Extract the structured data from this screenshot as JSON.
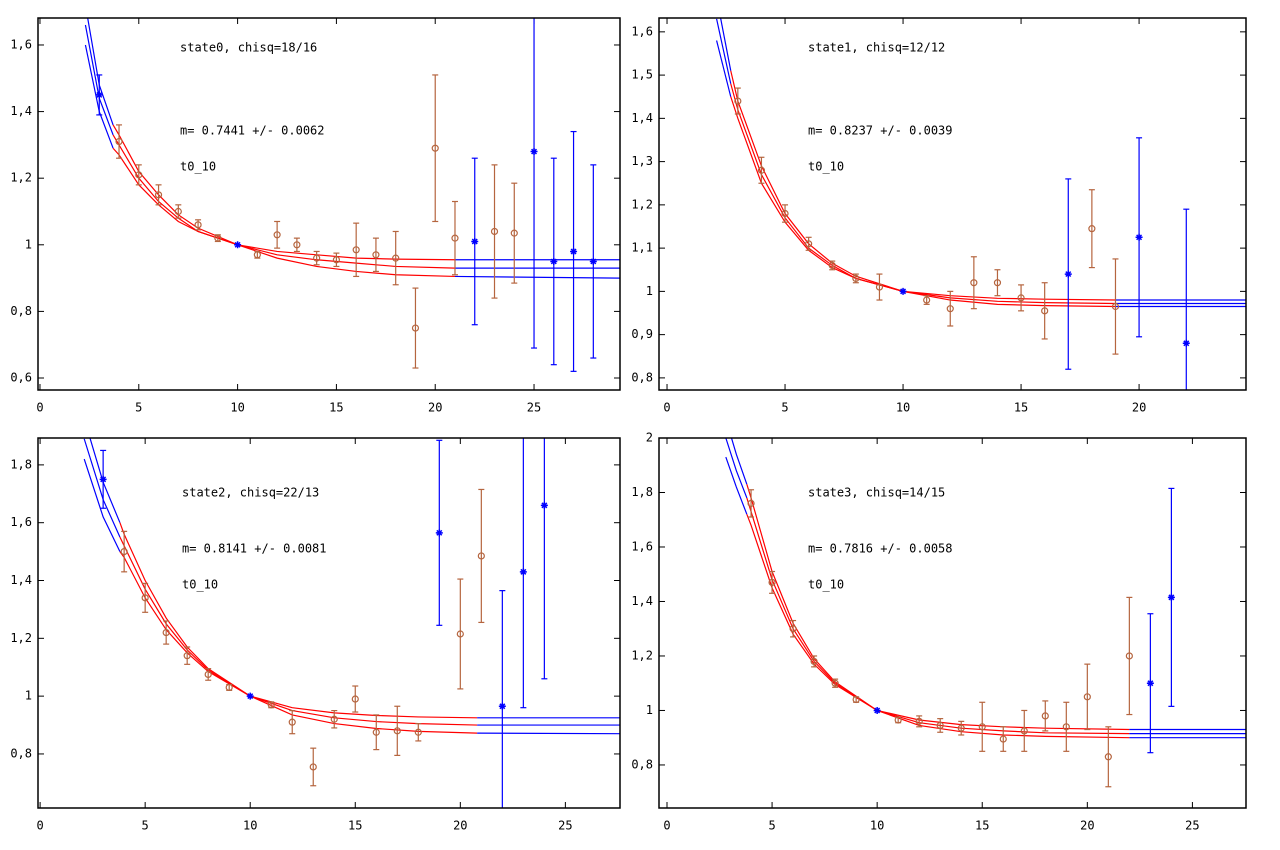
{
  "chart_data": [
    {
      "type": "scatter",
      "annotations": [
        "state0, chisq=18/16",
        "m= 0.7441 +/- 0.0062",
        "t0_10"
      ],
      "xlim": [
        -0.1,
        29.35
      ],
      "ylim": [
        0.564,
        1.681
      ],
      "xticks": [
        0,
        5,
        10,
        15,
        20,
        25
      ],
      "yticks": [
        {
          "value": 0.6,
          "label": "0,6"
        },
        {
          "value": 0.8,
          "label": "0,8"
        },
        1,
        {
          "value": 1.2,
          "label": "1,2"
        },
        {
          "value": 1.4,
          "label": "1,4"
        },
        {
          "value": 1.6,
          "label": "1,6"
        }
      ],
      "series": [
        {
          "color": "#b5653f",
          "marker": "circle",
          "x": [
            4,
            5,
            6,
            7,
            8,
            9,
            11,
            12,
            13,
            14,
            15,
            16,
            17,
            18,
            19,
            20,
            21,
            23,
            24
          ],
          "values": [
            1.31,
            1.21,
            1.15,
            1.1,
            1.06,
            1.02,
            0.97,
            1.03,
            1.0,
            0.96,
            0.955,
            0.985,
            0.97,
            0.96,
            0.75,
            1.29,
            1.02,
            1.04,
            1.035
          ],
          "errors": [
            0.05,
            0.03,
            0.03,
            0.02,
            0.015,
            0.01,
            0.01,
            0.04,
            0.02,
            0.02,
            0.02,
            0.08,
            0.05,
            0.08,
            0.12,
            0.22,
            0.11,
            0.2,
            0.15
          ]
        },
        {
          "color": "#0000ff",
          "marker": "star",
          "x": [
            3,
            10,
            22,
            25,
            26,
            27,
            28
          ],
          "values": [
            1.45,
            1.0,
            1.01,
            1.28,
            0.95,
            0.98,
            0.95
          ],
          "errors": [
            0.06,
            0,
            0.25,
            0.59,
            0.31,
            0.36,
            0.29
          ]
        }
      ],
      "fit": [
        {
          "color": "#0000ff",
          "x": [
            2.3,
            3,
            3.7
          ],
          "curves": [
            [
              1.66,
              1.44,
              1.33
            ],
            [
              1.6,
              1.4,
              1.29
            ],
            [
              1.72,
              1.48,
              1.36
            ]
          ]
        },
        {
          "color": "#ff0000",
          "x": [
            3.7,
            4,
            5,
            6,
            7,
            8,
            10,
            12,
            14,
            16,
            18,
            21
          ],
          "curves": [
            [
              1.33,
              1.3,
              1.2,
              1.13,
              1.08,
              1.04,
              1.0,
              0.97,
              0.955,
              0.945,
              0.935,
              0.93
            ],
            [
              1.29,
              1.27,
              1.18,
              1.12,
              1.07,
              1.04,
              1.0,
              0.98,
              0.97,
              0.96,
              0.957,
              0.955
            ],
            [
              1.36,
              1.33,
              1.22,
              1.15,
              1.09,
              1.05,
              1.0,
              0.96,
              0.935,
              0.92,
              0.91,
              0.905
            ]
          ]
        },
        {
          "color": "#0000ff",
          "x": [
            21,
            29.35
          ],
          "curves": [
            [
              0.93,
              0.93
            ],
            [
              0.955,
              0.955
            ],
            [
              0.905,
              0.9
            ]
          ]
        }
      ]
    },
    {
      "type": "scatter",
      "annotations": [
        "state1, chisq=12/12",
        "m= 0.8237 +/- 0.0039",
        "t0_10"
      ],
      "xlim": [
        -0.34,
        24.53
      ],
      "ylim": [
        0.772,
        1.632
      ],
      "xticks": [
        0,
        5,
        10,
        15,
        20
      ],
      "yticks": [
        {
          "value": 0.8,
          "label": "0,8"
        },
        {
          "value": 0.9,
          "label": "0,9"
        },
        1,
        {
          "value": 1.1,
          "label": "1,1"
        },
        {
          "value": 1.2,
          "label": "1,2"
        },
        {
          "value": 1.3,
          "label": "1,3"
        },
        {
          "value": 1.4,
          "label": "1,4"
        },
        {
          "value": 1.5,
          "label": "1,5"
        },
        {
          "value": 1.6,
          "label": "1,6"
        }
      ],
      "series": [
        {
          "color": "#b5653f",
          "marker": "circle",
          "x": [
            3,
            4,
            5,
            6,
            7,
            8,
            9,
            11,
            12,
            13,
            14,
            15,
            16,
            18,
            19
          ],
          "values": [
            1.44,
            1.28,
            1.18,
            1.11,
            1.06,
            1.03,
            1.01,
            0.98,
            0.96,
            1.02,
            1.02,
            0.985,
            0.955,
            1.145,
            0.965
          ],
          "errors": [
            0.03,
            0.03,
            0.02,
            0.015,
            0.01,
            0.01,
            0.03,
            0.01,
            0.04,
            0.06,
            0.03,
            0.03,
            0.065,
            0.09,
            0.11
          ]
        },
        {
          "color": "#0000ff",
          "marker": "star",
          "x": [
            10,
            17,
            20,
            22
          ],
          "values": [
            1.0,
            1.04,
            1.125,
            0.88
          ],
          "errors": [
            0,
            0.22,
            0.23,
            0.31
          ]
        }
      ],
      "fit": [
        {
          "color": "#0000ff",
          "x": [
            2.1,
            2.7
          ],
          "curves": [
            [
              1.63,
              1.48
            ],
            [
              1.58,
              1.45
            ],
            [
              1.68,
              1.51
            ]
          ]
        },
        {
          "color": "#ff0000",
          "x": [
            2.7,
            3,
            4,
            5,
            6,
            7,
            8,
            10,
            12,
            14,
            16,
            19
          ],
          "curves": [
            [
              1.48,
              1.42,
              1.27,
              1.17,
              1.1,
              1.06,
              1.03,
              1.0,
              0.985,
              0.977,
              0.974,
              0.972
            ],
            [
              1.45,
              1.4,
              1.25,
              1.16,
              1.095,
              1.055,
              1.03,
              1.0,
              0.99,
              0.984,
              0.982,
              0.98
            ],
            [
              1.51,
              1.44,
              1.29,
              1.18,
              1.11,
              1.065,
              1.035,
              1.0,
              0.98,
              0.97,
              0.967,
              0.965
            ]
          ]
        },
        {
          "color": "#0000ff",
          "x": [
            19,
            24.53
          ],
          "curves": [
            [
              0.972,
              0.972
            ],
            [
              0.98,
              0.98
            ],
            [
              0.965,
              0.965
            ]
          ]
        }
      ]
    },
    {
      "type": "scatter",
      "annotations": [
        "state2, chisq=22/13",
        "m= 0.8141 +/- 0.0081",
        "t0_10"
      ],
      "xlim": [
        -0.1,
        27.6
      ],
      "ylim": [
        0.613,
        1.893
      ],
      "xticks": [
        0,
        5,
        10,
        15,
        20,
        25
      ],
      "yticks": [
        {
          "value": 0.8,
          "label": "0,8"
        },
        1,
        {
          "value": 1.2,
          "label": "1,2"
        },
        {
          "value": 1.4,
          "label": "1,4"
        },
        {
          "value": 1.6,
          "label": "1,6"
        },
        {
          "value": 1.8,
          "label": "1,8"
        }
      ],
      "series": [
        {
          "color": "#b5653f",
          "marker": "circle",
          "x": [
            4,
            5,
            6,
            7,
            8,
            9,
            11,
            12,
            13,
            14,
            15,
            16,
            17,
            18,
            20,
            21
          ],
          "values": [
            1.5,
            1.34,
            1.22,
            1.14,
            1.075,
            1.03,
            0.97,
            0.91,
            0.755,
            0.92,
            0.99,
            0.875,
            0.88,
            0.875,
            1.215,
            1.485
          ],
          "errors": [
            0.07,
            0.05,
            0.04,
            0.03,
            0.02,
            0.01,
            0.01,
            0.04,
            0.065,
            0.03,
            0.045,
            0.06,
            0.085,
            0.03,
            0.19,
            0.23
          ]
        },
        {
          "color": "#0000ff",
          "marker": "star",
          "x": [
            3,
            10,
            19,
            22,
            23,
            24
          ],
          "values": [
            1.75,
            1.0,
            1.565,
            0.965,
            1.43,
            1.66
          ],
          "errors": [
            0.1,
            0,
            0.32,
            0.4,
            0.47,
            0.6
          ]
        }
      ],
      "fit": [
        {
          "color": "#0000ff",
          "x": [
            2.1,
            3,
            3.8
          ],
          "curves": [
            [
              1.89,
              1.68,
              1.55
            ],
            [
              1.82,
              1.62,
              1.5
            ],
            [
              1.96,
              1.74,
              1.6
            ]
          ]
        },
        {
          "color": "#ff0000",
          "x": [
            3.8,
            4,
            5,
            6,
            7,
            8,
            10,
            12,
            14,
            16,
            18,
            20.8
          ],
          "curves": [
            [
              1.55,
              1.52,
              1.37,
              1.25,
              1.16,
              1.09,
              1.0,
              0.95,
              0.925,
              0.912,
              0.905,
              0.9
            ],
            [
              1.5,
              1.48,
              1.34,
              1.23,
              1.15,
              1.085,
              1.0,
              0.96,
              0.942,
              0.933,
              0.928,
              0.925
            ],
            [
              1.6,
              1.56,
              1.4,
              1.27,
              1.17,
              1.095,
              1.0,
              0.935,
              0.905,
              0.888,
              0.878,
              0.872
            ]
          ]
        },
        {
          "color": "#0000ff",
          "x": [
            20.8,
            27.6
          ],
          "curves": [
            [
              0.9,
              0.9
            ],
            [
              0.925,
              0.925
            ],
            [
              0.872,
              0.87
            ]
          ]
        }
      ]
    },
    {
      "type": "scatter",
      "annotations": [
        "state3, chisq=14/15",
        "m= 0.7816 +/- 0.0058",
        "t0_10"
      ],
      "xlim": [
        -0.38,
        27.55
      ],
      "ylim": [
        0.642,
        2.0
      ],
      "xticks": [
        0,
        5,
        10,
        15,
        20,
        25
      ],
      "yticks": [
        {
          "value": 0.8,
          "label": "0,8"
        },
        1,
        {
          "value": 1.2,
          "label": "1,2"
        },
        {
          "value": 1.4,
          "label": "1,4"
        },
        {
          "value": 1.6,
          "label": "1,6"
        },
        {
          "value": 1.8,
          "label": "1,8"
        },
        2
      ],
      "series": [
        {
          "color": "#b5653f",
          "marker": "circle",
          "x": [
            4,
            5,
            6,
            7,
            8,
            9,
            11,
            12,
            13,
            14,
            15,
            16,
            17,
            18,
            19,
            20,
            21,
            22
          ],
          "values": [
            1.76,
            1.47,
            1.3,
            1.18,
            1.1,
            1.04,
            0.965,
            0.96,
            0.945,
            0.935,
            0.94,
            0.895,
            0.925,
            0.98,
            0.94,
            1.05,
            0.83,
            1.2
          ],
          "errors": [
            0.05,
            0.04,
            0.03,
            0.02,
            0.015,
            0.01,
            0.01,
            0.02,
            0.025,
            0.025,
            0.09,
            0.045,
            0.075,
            0.055,
            0.09,
            0.12,
            0.11,
            0.215
          ]
        },
        {
          "color": "#0000ff",
          "marker": "star",
          "x": [
            10,
            23,
            24
          ],
          "values": [
            1.0,
            1.1,
            1.415
          ],
          "errors": [
            0,
            0.255,
            0.4
          ]
        }
      ],
      "fit": [
        {
          "color": "#0000ff",
          "x": [
            2.8,
            3.3,
            3.8
          ],
          "curves": [
            [
              2.0,
              1.88,
              1.78
            ],
            [
              1.93,
              1.82,
              1.72
            ],
            [
              2.07,
              1.94,
              1.83
            ]
          ]
        },
        {
          "color": "#ff0000",
          "x": [
            3.8,
            4,
            5,
            6,
            7,
            8,
            10,
            12,
            14,
            16,
            18,
            22
          ],
          "curves": [
            [
              1.78,
              1.73,
              1.48,
              1.3,
              1.18,
              1.1,
              1.0,
              0.955,
              0.935,
              0.925,
              0.918,
              0.915
            ],
            [
              1.72,
              1.68,
              1.45,
              1.28,
              1.17,
              1.095,
              1.0,
              0.965,
              0.948,
              0.94,
              0.935,
              0.93
            ],
            [
              1.83,
              1.78,
              1.51,
              1.32,
              1.19,
              1.105,
              1.0,
              0.945,
              0.922,
              0.91,
              0.905,
              0.9
            ]
          ]
        },
        {
          "color": "#0000ff",
          "x": [
            22,
            27.55
          ],
          "curves": [
            [
              0.915,
              0.915
            ],
            [
              0.93,
              0.93
            ],
            [
              0.9,
              0.9
            ]
          ]
        }
      ]
    }
  ]
}
